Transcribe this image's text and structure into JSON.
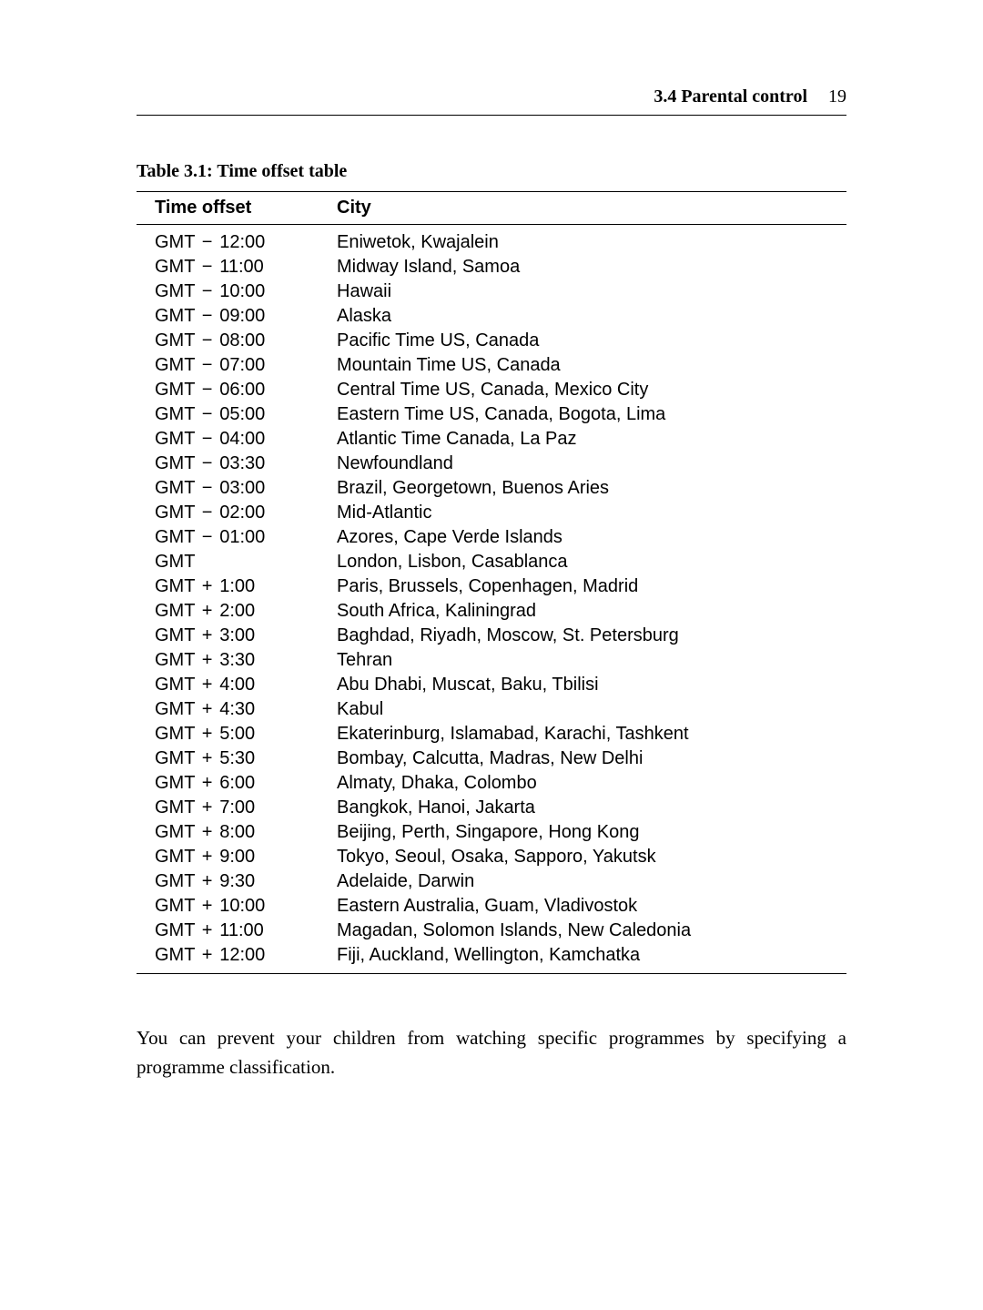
{
  "header": {
    "section": "3.4 Parental control",
    "page_number": "19"
  },
  "table": {
    "caption": "Table 3.1: Time offset table",
    "columns": [
      "Time offset",
      "City"
    ],
    "rows": [
      {
        "prefix": "GMT",
        "op": "−",
        "val": "12:00",
        "city": "Eniwetok, Kwajalein"
      },
      {
        "prefix": "GMT",
        "op": "−",
        "val": "11:00",
        "city": "Midway Island, Samoa"
      },
      {
        "prefix": "GMT",
        "op": "−",
        "val": "10:00",
        "city": "Hawaii"
      },
      {
        "prefix": "GMT",
        "op": "−",
        "val": "09:00",
        "city": "Alaska"
      },
      {
        "prefix": "GMT",
        "op": "−",
        "val": "08:00",
        "city": "Pacific Time US, Canada"
      },
      {
        "prefix": "GMT",
        "op": "−",
        "val": "07:00",
        "city": "Mountain Time US, Canada"
      },
      {
        "prefix": "GMT",
        "op": "−",
        "val": "06:00",
        "city": "Central Time US, Canada, Mexico City"
      },
      {
        "prefix": "GMT",
        "op": "−",
        "val": "05:00",
        "city": "Eastern Time US, Canada, Bogota, Lima"
      },
      {
        "prefix": "GMT",
        "op": "−",
        "val": "04:00",
        "city": "Atlantic Time Canada, La Paz"
      },
      {
        "prefix": "GMT",
        "op": "−",
        "val": "03:30",
        "city": "Newfoundland"
      },
      {
        "prefix": "GMT",
        "op": "−",
        "val": "03:00",
        "city": "Brazil, Georgetown, Buenos Aries"
      },
      {
        "prefix": "GMT",
        "op": "−",
        "val": "02:00",
        "city": "Mid-Atlantic"
      },
      {
        "prefix": "GMT",
        "op": "−",
        "val": "01:00",
        "city": "Azores, Cape Verde Islands"
      },
      {
        "prefix": "GMT",
        "op": "",
        "val": "",
        "city": "London, Lisbon, Casablanca"
      },
      {
        "prefix": "GMT",
        "op": "+",
        "val": "1:00",
        "city": "Paris, Brussels, Copenhagen, Madrid"
      },
      {
        "prefix": "GMT",
        "op": "+",
        "val": "2:00",
        "city": "South Africa, Kaliningrad"
      },
      {
        "prefix": "GMT",
        "op": "+",
        "val": "3:00",
        "city": "Baghdad, Riyadh, Moscow, St. Petersburg"
      },
      {
        "prefix": "GMT",
        "op": "+",
        "val": "3:30",
        "city": "Tehran"
      },
      {
        "prefix": "GMT",
        "op": "+",
        "val": "4:00",
        "city": "Abu Dhabi, Muscat, Baku, Tbilisi"
      },
      {
        "prefix": "GMT",
        "op": "+",
        "val": "4:30",
        "city": "Kabul"
      },
      {
        "prefix": "GMT",
        "op": "+",
        "val": "5:00",
        "city": "Ekaterinburg, Islamabad, Karachi, Tashkent"
      },
      {
        "prefix": "GMT",
        "op": "+",
        "val": "5:30",
        "city": "Bombay, Calcutta, Madras, New Delhi"
      },
      {
        "prefix": "GMT",
        "op": "+",
        "val": "6:00",
        "city": "Almaty, Dhaka, Colombo"
      },
      {
        "prefix": "GMT",
        "op": "+",
        "val": "7:00",
        "city": "Bangkok, Hanoi, Jakarta"
      },
      {
        "prefix": "GMT",
        "op": "+",
        "val": "8:00",
        "city": "Beijing, Perth, Singapore, Hong Kong"
      },
      {
        "prefix": "GMT",
        "op": "+",
        "val": "9:00",
        "city": "Tokyo, Seoul, Osaka, Sapporo, Yakutsk"
      },
      {
        "prefix": "GMT",
        "op": "+",
        "val": "9:30",
        "city": "Adelaide, Darwin"
      },
      {
        "prefix": "GMT",
        "op": "+",
        "val": "10:00",
        "city": "Eastern Australia, Guam, Vladivostok"
      },
      {
        "prefix": "GMT",
        "op": "+",
        "val": "11:00",
        "city": "Magadan, Solomon Islands, New Caledonia"
      },
      {
        "prefix": "GMT",
        "op": "+",
        "val": "12:00",
        "city": "Fiji, Auckland, Wellington, Kamchatka"
      }
    ]
  },
  "body_text": "You can prevent your children from watching specific programmes by specifying a programme classification."
}
